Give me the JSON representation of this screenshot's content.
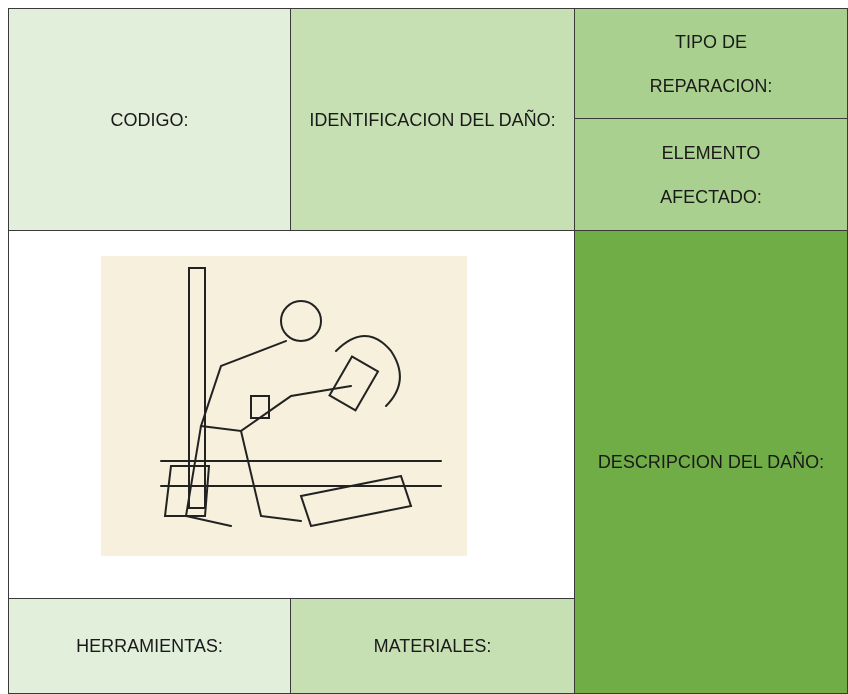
{
  "form": {
    "codigo": "CODIGO:",
    "identificacion": "IDENTIFICACION DEL DAÑO:",
    "tipo_reparacion": "TIPO DE REPARACION:",
    "elemento_afectado": "ELEMENTO AFECTADO:",
    "descripcion": "DESCRIPCION DEL DAÑO:",
    "herramientas": "HERRAMIENTAS:",
    "materiales": "MATERIALES:"
  }
}
